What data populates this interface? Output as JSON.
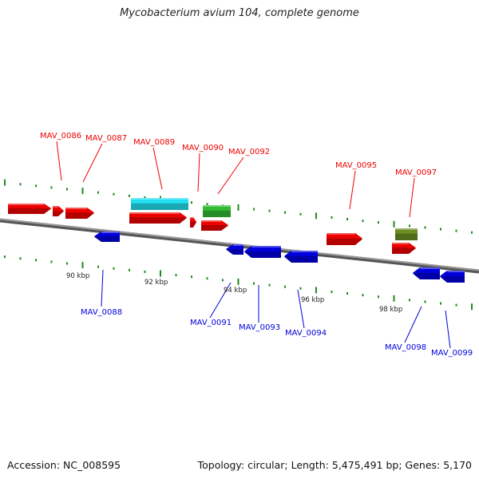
{
  "title": "Mycobacterium avium 104, complete genome",
  "footer": {
    "accession": "Accession: NC_008595",
    "summary": "Topology: circular; Length: 5,475,491 bp; Genes: 5,170"
  },
  "colors": {
    "forward": "#ee0000",
    "reverse": "#0000dd",
    "backbone": "#777777",
    "ticks": "#228822",
    "highlight_cyan": "#22e0f0",
    "highlight_green": "#33bb33",
    "highlight_olive": "#6b8e23"
  },
  "scale_labels": [
    {
      "text": "90 kbp"
    },
    {
      "text": "92 kbp"
    },
    {
      "text": "94 kbp"
    },
    {
      "text": "96 kbp"
    },
    {
      "text": "98 kbp"
    }
  ],
  "gene_labels": [
    {
      "text": "MAV_0086",
      "strand": "forward"
    },
    {
      "text": "MAV_0087",
      "strand": "forward"
    },
    {
      "text": "MAV_0088",
      "strand": "reverse"
    },
    {
      "text": "MAV_0089",
      "strand": "forward"
    },
    {
      "text": "MAV_0090",
      "strand": "forward"
    },
    {
      "text": "MAV_0091",
      "strand": "reverse"
    },
    {
      "text": "MAV_0092",
      "strand": "forward"
    },
    {
      "text": "MAV_0093",
      "strand": "reverse"
    },
    {
      "text": "MAV_0094",
      "strand": "reverse"
    },
    {
      "text": "MAV_0095",
      "strand": "forward"
    },
    {
      "text": "MAV_0097",
      "strand": "forward"
    },
    {
      "text": "MAV_0098",
      "strand": "reverse"
    },
    {
      "text": "MAV_0099",
      "strand": "reverse"
    }
  ]
}
